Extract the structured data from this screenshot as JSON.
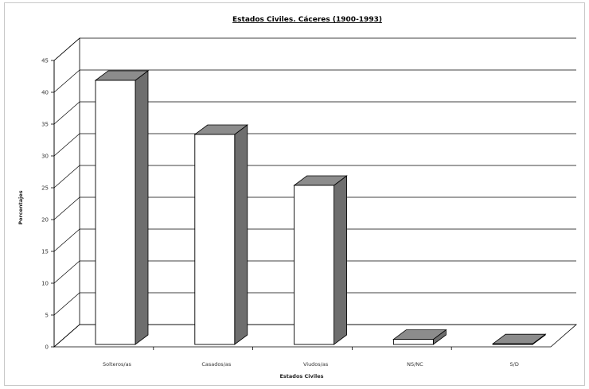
{
  "chart_data": {
    "type": "bar",
    "title": "Estados Civiles. Cáceres (1900-1993)",
    "xlabel": "Estados Civiles",
    "ylabel": "Porcentajes",
    "categories": [
      "Solteros/as",
      "Casados/as",
      "Viudos/as",
      "NS/NC",
      "S/D"
    ],
    "values": [
      41.5,
      33,
      25,
      0.8,
      0.1
    ],
    "ylim": [
      0,
      45
    ],
    "yticks": [
      "0",
      "5",
      "10",
      "15",
      "20",
      "25",
      "30",
      "35",
      "40",
      "45"
    ],
    "grid": true,
    "legend": "none",
    "three_d": true,
    "colors": {
      "bar_front": "#ffffff",
      "bar_side": "#6e6e6e",
      "bar_top": "#8c8c8c",
      "outline": "#000000",
      "grid": "#000000"
    }
  }
}
